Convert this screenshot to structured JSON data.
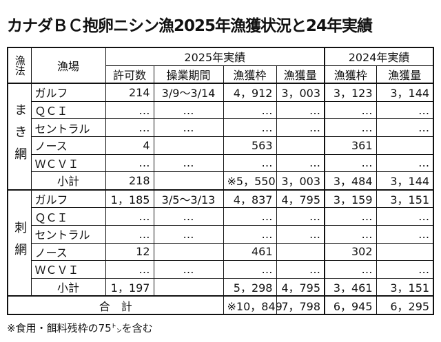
{
  "title": "カナダＢＣ抱卵ニシン漁2025年漁獲状況と24年実績",
  "table": {
    "header": {
      "method": "漁法",
      "ground": "漁場",
      "year2025": "2025年実績",
      "year2024": "2024年実績",
      "columns": [
        "許可数",
        "操業期間",
        "漁獲枠",
        "漁獲量",
        "漁獲枠",
        "漁獲量"
      ]
    },
    "groups": [
      {
        "method": "まき網",
        "rows": [
          {
            "ground": "ガルフ",
            "cells": [
              "214",
              "3/9～3/14",
              "4，912",
              "3，003",
              "3，123",
              "3，144"
            ]
          },
          {
            "ground": "ＱＣＩ",
            "cells": [
              "…",
              "…",
              "…",
              "…",
              "…",
              "…"
            ]
          },
          {
            "ground": "セントラル",
            "cells": [
              "…",
              "…",
              "…",
              "…",
              "…",
              "…"
            ]
          },
          {
            "ground": "ノース",
            "cells": [
              "4",
              null,
              "563",
              null,
              "361",
              null
            ]
          },
          {
            "ground": "ＷＣＶＩ",
            "cells": [
              "…",
              "…",
              "…",
              "…",
              "…",
              "…"
            ]
          },
          {
            "ground": "小計",
            "cells": [
              "218",
              null,
              "※5，550",
              "3，003",
              "3，484",
              "3，144"
            ]
          }
        ]
      },
      {
        "method": "刺網",
        "rows": [
          {
            "ground": "ガルフ",
            "cells": [
              "1，185",
              "3/5～3/13",
              "4，837",
              "4，795",
              "3，159",
              "3，151"
            ]
          },
          {
            "ground": "ＱＣＩ",
            "cells": [
              "…",
              "…",
              "…",
              "…",
              "…",
              "…"
            ]
          },
          {
            "ground": "セントラル",
            "cells": [
              "…",
              "…",
              "…",
              "…",
              "…",
              "…"
            ]
          },
          {
            "ground": "ノース",
            "cells": [
              "12",
              null,
              "461",
              null,
              "302",
              null
            ]
          },
          {
            "ground": "ＷＣＶＩ",
            "cells": [
              "…",
              "…",
              "…",
              "…",
              "…",
              "…"
            ]
          },
          {
            "ground": "小計",
            "cells": [
              "1，197",
              null,
              "5，298",
              "4，795",
              "3，461",
              "3，151"
            ]
          }
        ]
      }
    ],
    "total": {
      "label": "合　計",
      "cells": [
        "※10，849",
        "7，798",
        "6，945",
        "6，295"
      ]
    }
  },
  "footnote": "※食用・餌料残枠の75㌧を含む"
}
